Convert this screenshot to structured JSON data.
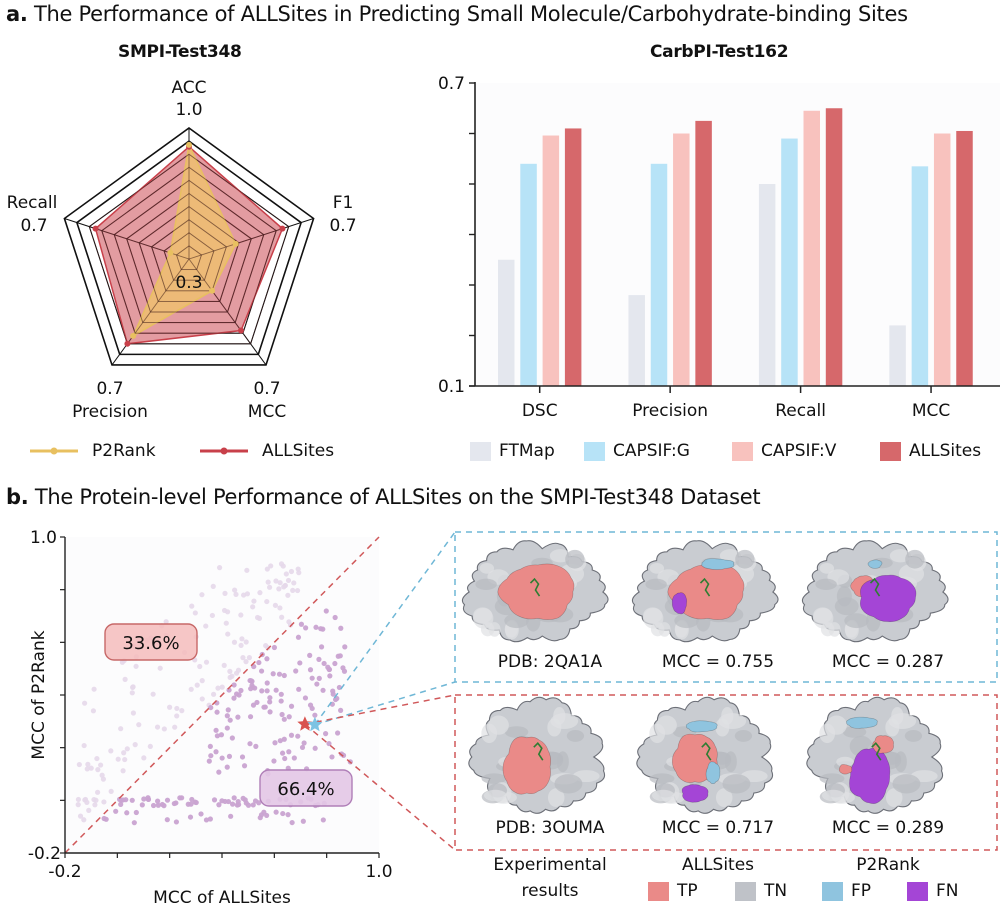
{
  "figure": {
    "section_a": {
      "letter": "a.",
      "title": "The Performance of ALLSites in Predicting Small Molecule/Carbohydrate-binding Sites"
    },
    "section_b": {
      "letter": "b.",
      "title": "The Protein-level Performance of ALLSites on the SMPI-Test348 Dataset"
    },
    "colors": {
      "p2rank": "#efc070",
      "p2rank_line": "#e8c060",
      "allsites_radar": "#d05a62",
      "allsites_line": "#c8404a",
      "ftmap": "#e4e7ee",
      "capsif_g": "#b7e3f7",
      "capsif_v": "#f8c2be",
      "allsites_bar": "#d6686b",
      "scatter_point": "#c9a3d1",
      "tp": "#ea8a88",
      "tn": "#bfc2c8",
      "fp": "#8fc4df",
      "fn": "#a445d6",
      "blue_dash": "#6fb7d6",
      "red_dash": "#d0585a"
    }
  },
  "chart_data": [
    {
      "type": "radar",
      "title": "SMPI-Test348",
      "axes": [
        {
          "name": "ACC",
          "max_label": "1.0"
        },
        {
          "name": "F1",
          "max_label": "0.7"
        },
        {
          "name": "MCC",
          "max_label": "0.7"
        },
        {
          "name": "Precision",
          "max_label": "0.7"
        },
        {
          "name": "Recall",
          "max_label": "0.7"
        }
      ],
      "center_label": "0.3",
      "axis_ranges": {
        "ACC": [
          0.3,
          1.0
        ],
        "F1": [
          0.3,
          0.7
        ],
        "MCC": [
          0.3,
          0.7
        ],
        "Precision": [
          0.3,
          0.7
        ],
        "Recall": [
          0.3,
          0.7
        ]
      },
      "rings": 10,
      "series": [
        {
          "name": "P2Rank",
          "values": [
            0.91,
            0.45,
            0.42,
            0.59,
            0.36
          ]
        },
        {
          "name": "ALLSites",
          "values": [
            0.9,
            0.6,
            0.57,
            0.62,
            0.6
          ]
        }
      ],
      "legend": [
        "P2Rank",
        "ALLSites"
      ],
      "legend_position": "bottom"
    },
    {
      "type": "bar",
      "title": "CarbPI-Test162",
      "categories": [
        "DSC",
        "Precision",
        "Recall",
        "MCC"
      ],
      "series": [
        {
          "name": "FTMap",
          "values": [
            0.35,
            0.28,
            0.5,
            0.22
          ]
        },
        {
          "name": "CAPSIF:G",
          "values": [
            0.54,
            0.54,
            0.59,
            0.535
          ]
        },
        {
          "name": "CAPSIF:V",
          "values": [
            0.596,
            0.6,
            0.645,
            0.6
          ]
        },
        {
          "name": "ALLSites",
          "values": [
            0.61,
            0.625,
            0.65,
            0.605
          ]
        }
      ],
      "xlabel": "",
      "ylabel": "",
      "ylim": [
        0.1,
        0.7
      ],
      "ytick_labels": [
        "0.1",
        "0.7"
      ],
      "yticks": [
        0.1,
        0.2,
        0.3,
        0.4,
        0.5,
        0.6,
        0.7
      ],
      "grid": false,
      "legend_position": "bottom"
    },
    {
      "type": "scatter",
      "title": "",
      "xlabel": "MCC of ALLSites",
      "ylabel": "MCC of P2Rank",
      "xlim": [
        -0.2,
        1.0
      ],
      "ylim": [
        -0.2,
        1.0
      ],
      "xtick_labels": [
        "-0.2",
        "1.0"
      ],
      "ytick_labels": [
        "-0.2",
        "1.0"
      ],
      "ticks": [
        -0.2,
        0.0,
        0.2,
        0.4,
        0.6,
        0.8,
        1.0
      ],
      "n_points": 348,
      "diagonal": "y = x",
      "annotations": [
        {
          "text": "33.6%",
          "region": "above diagonal (P2Rank better)"
        },
        {
          "text": "66.4%",
          "region": "below diagonal (ALLSites better)"
        }
      ],
      "highlighted": [
        {
          "name": "3OUMA",
          "marker": "red-star",
          "x": 0.717,
          "y": 0.289
        },
        {
          "name": "2QA1A",
          "marker": "blue-star",
          "x": 0.755,
          "y": 0.287
        }
      ]
    }
  ],
  "radar_legend": [
    {
      "label": "P2Rank",
      "color_key": "p2rank_line"
    },
    {
      "label": "ALLSites",
      "color_key": "allsites_line"
    }
  ],
  "bar_legend": [
    {
      "label": "FTMap"
    },
    {
      "label": "CAPSIF:G"
    },
    {
      "label": "CAPSIF:V"
    },
    {
      "label": "ALLSites"
    }
  ],
  "case_studies": {
    "top": {
      "pdb_label": "PDB: 2QA1A",
      "allsites_mcc": "MCC = 0.755",
      "p2rank_mcc": "MCC = 0.287"
    },
    "bottom": {
      "pdb_label": "PDB: 3OUMA",
      "allsites_mcc": "MCC = 0.717",
      "p2rank_mcc": "MCC = 0.289"
    },
    "column_labels": [
      "Experimental results",
      "ALLSites",
      "P2Rank"
    ],
    "column_label_lines": [
      [
        "Experimental",
        "results"
      ],
      [
        "ALLSites"
      ],
      [
        "P2Rank"
      ]
    ],
    "legend": [
      {
        "label": "TP"
      },
      {
        "label": "TN"
      },
      {
        "label": "FP"
      },
      {
        "label": "FN"
      }
    ]
  }
}
